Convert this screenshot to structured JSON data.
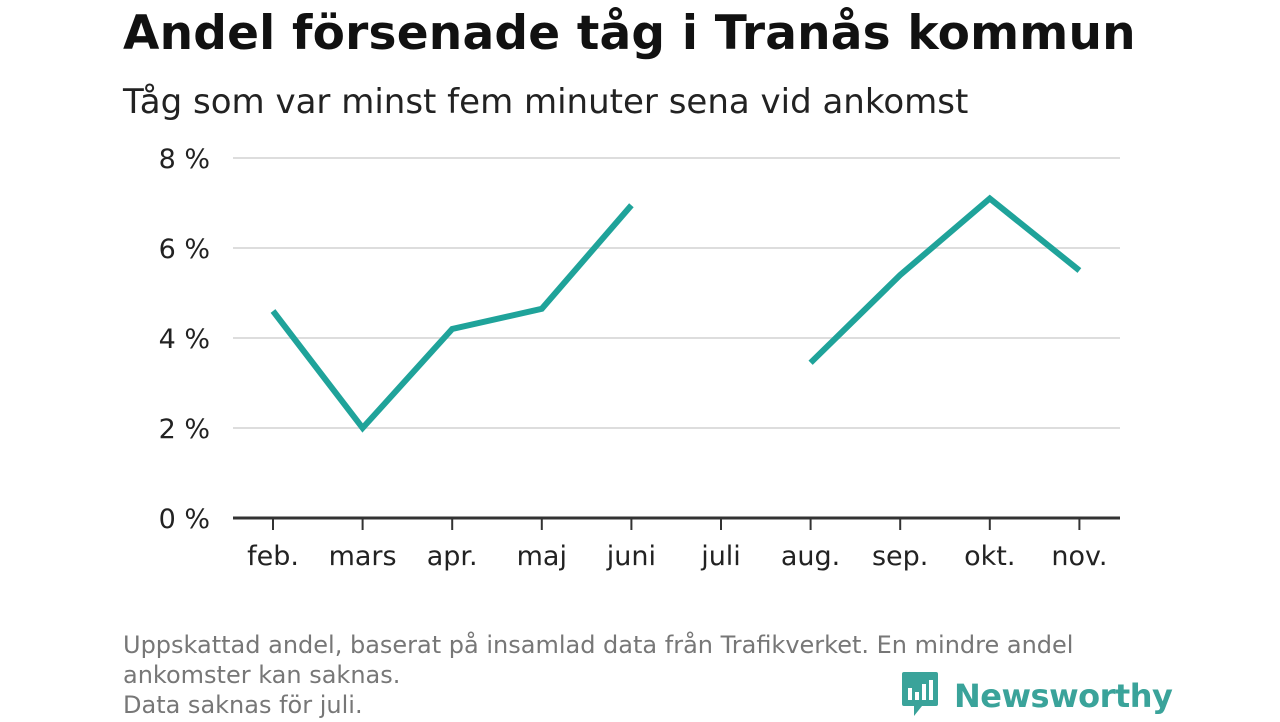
{
  "title": "Andel försenade tåg i Tranås kommun",
  "subtitle": "Tåg som var minst fem minuter sena vid ankomst",
  "footnote": {
    "line1": "Uppskattad andel, baserat på insamlad data från Trafikverket. En mindre andel",
    "line2": "ankomster kan saknas.",
    "line3": "Data saknas för juli."
  },
  "brand": {
    "name": "Newsworthy",
    "icon": "bar-chart-logo-icon",
    "color": "#3aa39a"
  },
  "colors": {
    "line": "#1fa39a",
    "grid": "#dddddd",
    "axis": "#333333",
    "text": "#222222"
  },
  "chart_data": {
    "type": "line",
    "categories": [
      "feb.",
      "mars",
      "apr.",
      "maj",
      "juni",
      "juli",
      "aug.",
      "sep.",
      "okt.",
      "nov."
    ],
    "series": [
      {
        "name": "",
        "values": [
          4.6,
          2.0,
          4.2,
          4.65,
          6.95,
          null,
          3.45,
          5.4,
          7.1,
          5.5
        ]
      }
    ],
    "yticks": [
      0,
      2,
      4,
      6,
      8
    ],
    "ytick_labels": [
      "0 %",
      "2 %",
      "4 %",
      "6 %",
      "8 %"
    ],
    "ylim": [
      0,
      8
    ],
    "xlabel": "",
    "ylabel": "",
    "grid": true
  }
}
